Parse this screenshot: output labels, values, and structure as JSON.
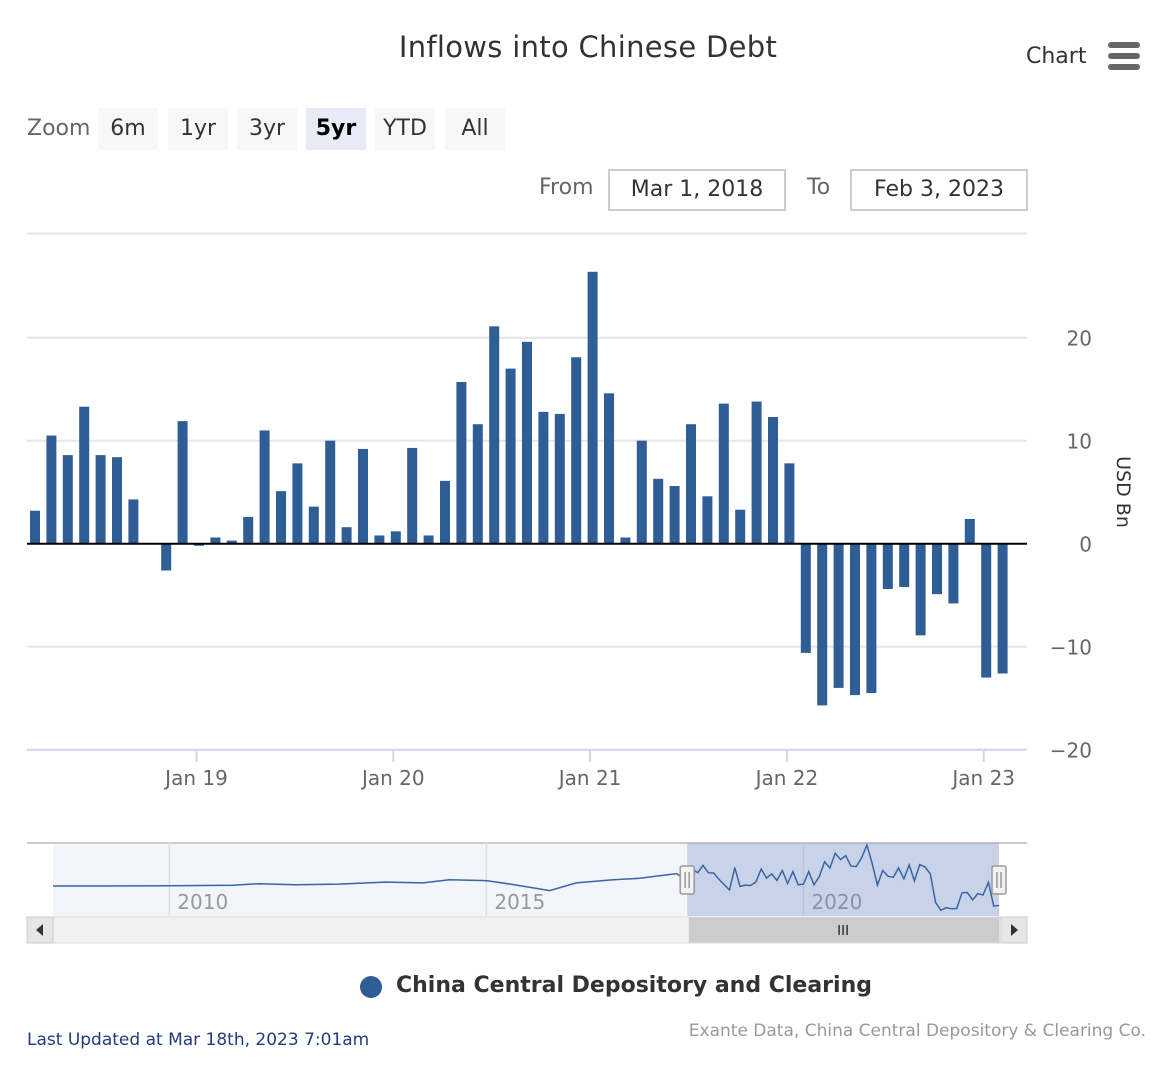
{
  "title": "Inflows into Chinese Debt",
  "menu": {
    "label": "Chart",
    "icon": "hamburger-menu-icon"
  },
  "zoom": {
    "label": "Zoom",
    "buttons": [
      "6m",
      "1yr",
      "3yr",
      "5yr",
      "YTD",
      "All"
    ],
    "selected": "5yr"
  },
  "range": {
    "from_label": "From",
    "from_value": "Mar 1, 2018",
    "to_label": "To",
    "to_value": "Feb 3, 2023"
  },
  "legend": {
    "series_name": "China Central Depository and Clearing",
    "color": "#2f5d95"
  },
  "footer": {
    "last_updated": "Last Updated at Mar 18th, 2023 7:01am",
    "credits": "Exante Data, China Central Depository & Clearing Co."
  },
  "colors": {
    "bar": "#2f5d95",
    "navigator_fill": "#ccd6eb",
    "grid": "#e6e6e6"
  },
  "chart_data": {
    "type": "bar",
    "title": "Inflows into Chinese Debt",
    "ylabel": "USD Bn",
    "ylim": [
      -20,
      27
    ],
    "yticks": [
      -20,
      -10,
      0,
      10,
      20
    ],
    "ytick_labels": [
      "−20",
      "−10",
      "0",
      "10",
      "20"
    ],
    "x_start": "2018-03",
    "x_end": "2023-02",
    "xticks": [
      {
        "label": "Jan 19",
        "date": "2019-01"
      },
      {
        "label": "Jan 20",
        "date": "2020-01"
      },
      {
        "label": "Jan 21",
        "date": "2021-01"
      },
      {
        "label": "Jan 22",
        "date": "2022-01"
      },
      {
        "label": "Jan 23",
        "date": "2023-01"
      }
    ],
    "grid": true,
    "legend_position": "bottom-center",
    "series": [
      {
        "name": "China Central Depository and Clearing",
        "color": "#2f5d95",
        "points": [
          {
            "x": "2018-03",
            "y": 3.2
          },
          {
            "x": "2018-04",
            "y": 10.5
          },
          {
            "x": "2018-05",
            "y": 8.6
          },
          {
            "x": "2018-06",
            "y": 13.3
          },
          {
            "x": "2018-07",
            "y": 8.6
          },
          {
            "x": "2018-08",
            "y": 8.4
          },
          {
            "x": "2018-09",
            "y": 4.3
          },
          {
            "x": "2018-11",
            "y": -2.6
          },
          {
            "x": "2018-12",
            "y": 11.9
          },
          {
            "x": "2019-01",
            "y": -0.2
          },
          {
            "x": "2019-02",
            "y": 0.6
          },
          {
            "x": "2019-03",
            "y": 0.3
          },
          {
            "x": "2019-04",
            "y": 2.6
          },
          {
            "x": "2019-05",
            "y": 11.0
          },
          {
            "x": "2019-06",
            "y": 5.1
          },
          {
            "x": "2019-07",
            "y": 7.8
          },
          {
            "x": "2019-08",
            "y": 3.6
          },
          {
            "x": "2019-09",
            "y": 10.0
          },
          {
            "x": "2019-10",
            "y": 1.6
          },
          {
            "x": "2019-11",
            "y": 9.2
          },
          {
            "x": "2019-12",
            "y": 0.8
          },
          {
            "x": "2020-01",
            "y": 1.2
          },
          {
            "x": "2020-02",
            "y": 9.3
          },
          {
            "x": "2020-03",
            "y": 0.8
          },
          {
            "x": "2020-04",
            "y": 6.1
          },
          {
            "x": "2020-05",
            "y": 15.7
          },
          {
            "x": "2020-06",
            "y": 11.6
          },
          {
            "x": "2020-07",
            "y": 21.1
          },
          {
            "x": "2020-08",
            "y": 17.0
          },
          {
            "x": "2020-09",
            "y": 19.6
          },
          {
            "x": "2020-10",
            "y": 12.8
          },
          {
            "x": "2020-11",
            "y": 12.6
          },
          {
            "x": "2020-12",
            "y": 18.1
          },
          {
            "x": "2021-01",
            "y": 26.4
          },
          {
            "x": "2021-02",
            "y": 14.6
          },
          {
            "x": "2021-03",
            "y": 0.6
          },
          {
            "x": "2021-04",
            "y": 10.0
          },
          {
            "x": "2021-05",
            "y": 6.3
          },
          {
            "x": "2021-06",
            "y": 5.6
          },
          {
            "x": "2021-07",
            "y": 11.6
          },
          {
            "x": "2021-08",
            "y": 4.6
          },
          {
            "x": "2021-09",
            "y": 13.6
          },
          {
            "x": "2021-10",
            "y": 3.3
          },
          {
            "x": "2021-11",
            "y": 13.8
          },
          {
            "x": "2021-12",
            "y": 12.3
          },
          {
            "x": "2022-01",
            "y": 7.8
          },
          {
            "x": "2022-02",
            "y": -10.6
          },
          {
            "x": "2022-03",
            "y": -15.7
          },
          {
            "x": "2022-04",
            "y": -14.0
          },
          {
            "x": "2022-05",
            "y": -14.7
          },
          {
            "x": "2022-06",
            "y": -14.5
          },
          {
            "x": "2022-07",
            "y": -4.4
          },
          {
            "x": "2022-08",
            "y": -4.2
          },
          {
            "x": "2022-09",
            "y": -8.9
          },
          {
            "x": "2022-10",
            "y": -4.9
          },
          {
            "x": "2022-11",
            "y": -5.8
          },
          {
            "x": "2022-12",
            "y": 2.4
          },
          {
            "x": "2023-01",
            "y": -13.0
          },
          {
            "x": "2023-02",
            "y": -12.6
          }
        ]
      }
    ],
    "navigator": {
      "xticks": [
        "2010",
        "2015",
        "2020"
      ],
      "selected_range": [
        "2018-03",
        "2023-02"
      ],
      "series": [
        {
          "x": "2008-03",
          "y": 0.0
        },
        {
          "x": "2009-01",
          "y": 0.0
        },
        {
          "x": "2010-01",
          "y": 0.2
        },
        {
          "x": "2011-01",
          "y": 0.5
        },
        {
          "x": "2011-06",
          "y": 1.5
        },
        {
          "x": "2012-01",
          "y": 0.8
        },
        {
          "x": "2012-09",
          "y": 1.2
        },
        {
          "x": "2013-06",
          "y": 2.5
        },
        {
          "x": "2014-01",
          "y": 2.0
        },
        {
          "x": "2014-06",
          "y": 4.0
        },
        {
          "x": "2015-01",
          "y": 3.5
        },
        {
          "x": "2015-06",
          "y": 1.0
        },
        {
          "x": "2016-01",
          "y": -3.0
        },
        {
          "x": "2016-06",
          "y": 2.0
        },
        {
          "x": "2017-01",
          "y": 4.0
        },
        {
          "x": "2017-06",
          "y": 5.0
        },
        {
          "x": "2018-01",
          "y": 8.0
        }
      ]
    }
  }
}
